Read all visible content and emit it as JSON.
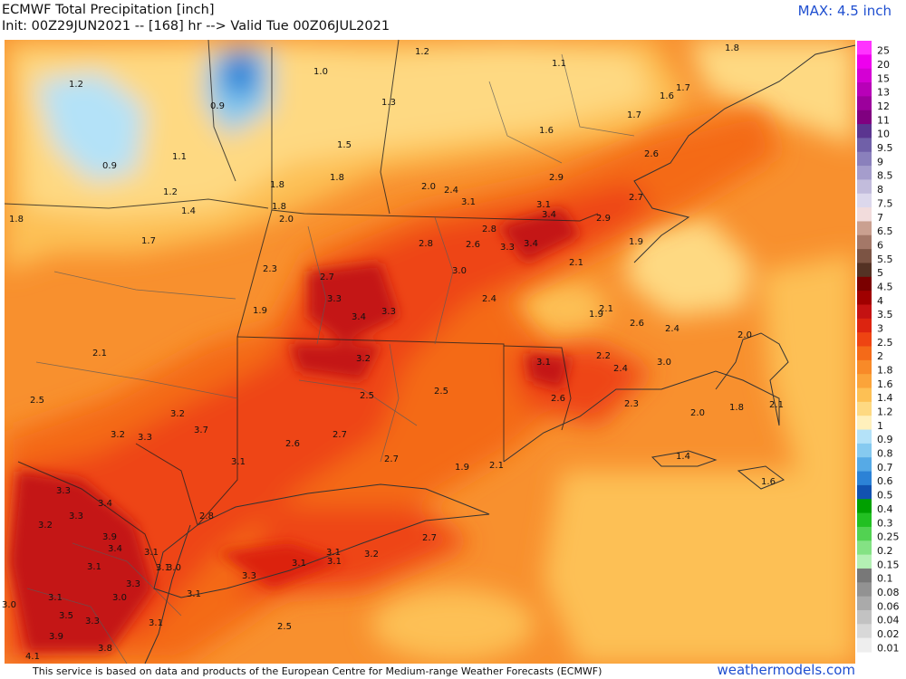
{
  "header": {
    "title": "ECMWF Total Precipitation [inch]",
    "subtitle": "Init: 00Z29JUN2021 -- [168] hr --> Valid Tue 00Z06JUL2021",
    "max_label": "MAX: 4.5 inch"
  },
  "footer": {
    "note": "This service is based on data and products of the European Centre for Medium-range Weather Forecasts (ECMWF)",
    "site": "weathermodels.com"
  },
  "colorbar": [
    {
      "label": "25",
      "color": "#ff33ff"
    },
    {
      "label": "20",
      "color": "#ee00ee"
    },
    {
      "label": "15",
      "color": "#d400d4"
    },
    {
      "label": "13",
      "color": "#b800b8"
    },
    {
      "label": "12",
      "color": "#9c009c"
    },
    {
      "label": "11",
      "color": "#800080"
    },
    {
      "label": "10",
      "color": "#5b3590"
    },
    {
      "label": "9.5",
      "color": "#7060a8"
    },
    {
      "label": "9",
      "color": "#8a80bc"
    },
    {
      "label": "8.5",
      "color": "#a59dcc"
    },
    {
      "label": "8",
      "color": "#c2bcdc"
    },
    {
      "label": "7.5",
      "color": "#dcd8ec"
    },
    {
      "label": "7",
      "color": "#f2dcdc"
    },
    {
      "label": "6.5",
      "color": "#caa090"
    },
    {
      "label": "6",
      "color": "#a47868"
    },
    {
      "label": "5.5",
      "color": "#7c5444"
    },
    {
      "label": "5",
      "color": "#543224"
    },
    {
      "label": "4.5",
      "color": "#7a0000"
    },
    {
      "label": "4",
      "color": "#a00000"
    },
    {
      "label": "3.5",
      "color": "#c41212"
    },
    {
      "label": "3",
      "color": "#dc2410"
    },
    {
      "label": "2.5",
      "color": "#ee4412"
    },
    {
      "label": "2",
      "color": "#f46a18"
    },
    {
      "label": "1.8",
      "color": "#f88a28"
    },
    {
      "label": "1.6",
      "color": "#fba43a"
    },
    {
      "label": "1.4",
      "color": "#fdc054"
    },
    {
      "label": "1.2",
      "color": "#fed982"
    },
    {
      "label": "1",
      "color": "#fff0bc"
    },
    {
      "label": "0.9",
      "color": "#b4e2f8"
    },
    {
      "label": "0.8",
      "color": "#86caf0"
    },
    {
      "label": "0.7",
      "color": "#56aae6"
    },
    {
      "label": "0.6",
      "color": "#2c82d6"
    },
    {
      "label": "0.5",
      "color": "#1252b0"
    },
    {
      "label": "0.4",
      "color": "#00a000"
    },
    {
      "label": "0.3",
      "color": "#22c022"
    },
    {
      "label": "0.25",
      "color": "#52d252"
    },
    {
      "label": "0.2",
      "color": "#84e284"
    },
    {
      "label": "0.15",
      "color": "#b4f0b4"
    },
    {
      "label": "0.1",
      "color": "#787878"
    },
    {
      "label": "0.08",
      "color": "#929292"
    },
    {
      "label": "0.06",
      "color": "#aaaaaa"
    },
    {
      "label": "0.04",
      "color": "#c2c2c2"
    },
    {
      "label": "0.02",
      "color": "#d8d8d8"
    },
    {
      "label": "0.01",
      "color": "#eeeeee"
    }
  ],
  "map_labels": [
    "1.2",
    "0.9",
    "1.1",
    "1.2",
    "1.4",
    "1.7",
    "1.8",
    "0.9",
    "1.0",
    "1.2",
    "1.3",
    "1.5",
    "1.8",
    "1.8",
    "1.8",
    "2.0",
    "1.1",
    "1.8",
    "1.6",
    "1.7",
    "1.6",
    "1.7",
    "2.6",
    "2.9",
    "2.0",
    "2.4",
    "3.1",
    "3.1",
    "3.4",
    "2.7",
    "2.9",
    "2.8",
    "2.6",
    "3.3",
    "3.4",
    "2.8",
    "3.0",
    "1.9",
    "2.1",
    "2.4",
    "2.3",
    "2.7",
    "3.3",
    "3.4",
    "3.3",
    "1.9",
    "1.9",
    "2.1",
    "2.6",
    "2.4",
    "2.0",
    "3.2",
    "3.1",
    "2.2",
    "2.4",
    "3.0",
    "2.1",
    "2.5",
    "3.2",
    "3.7",
    "3.2",
    "3.3",
    "2.5",
    "2.5",
    "2.6",
    "2.3",
    "2.0",
    "1.8",
    "2.1",
    "2.6",
    "2.7",
    "2.7",
    "3.1",
    "1.9",
    "2.1",
    "1.4",
    "1.6",
    "3.3",
    "3.4",
    "3.2",
    "3.3",
    "3.9",
    "3.4",
    "2.8",
    "2.7",
    "3.1",
    "3.1",
    "3.2",
    "3.1",
    "3.1",
    "3.1",
    "3.1",
    "3.0",
    "3.3",
    "3.3",
    "3.1",
    "3.0",
    "3.1",
    "3.5",
    "3.3",
    "3.1",
    "2.5",
    "3.9",
    "3.8",
    "4.1",
    "3.0"
  ]
}
